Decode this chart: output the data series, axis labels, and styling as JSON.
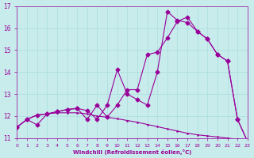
{
  "background_color": "#c8ecec",
  "grid_color": "#aadddd",
  "line_color": "#990099",
  "xlabel": "Windchill (Refroidissement éolien,°C)",
  "xlabel_color": "#990099",
  "tick_color": "#990099",
  "xlim": [
    0,
    23
  ],
  "ylim": [
    11,
    17
  ],
  "yticks": [
    11,
    12,
    13,
    14,
    15,
    16,
    17
  ],
  "xticks": [
    0,
    1,
    2,
    3,
    4,
    5,
    6,
    7,
    8,
    9,
    10,
    11,
    12,
    13,
    14,
    15,
    16,
    17,
    18,
    19,
    20,
    21,
    22,
    23
  ],
  "line1_x": [
    0,
    1,
    2,
    3,
    4,
    5,
    6,
    7,
    8,
    9,
    10,
    11,
    12,
    13,
    14,
    15,
    16,
    17,
    18,
    19,
    20,
    21,
    22,
    23
  ],
  "line1_y": [
    11.5,
    11.85,
    12.05,
    12.1,
    12.15,
    12.15,
    12.15,
    12.1,
    12.0,
    11.95,
    11.88,
    11.8,
    11.72,
    11.62,
    11.52,
    11.42,
    11.32,
    11.22,
    11.15,
    11.1,
    11.05,
    11.0,
    10.95,
    10.85
  ],
  "line2_x": [
    0,
    1,
    2,
    3,
    4,
    5,
    6,
    7,
    8,
    9,
    10,
    11,
    12,
    13,
    14,
    15,
    16,
    17,
    18,
    19,
    20,
    21,
    22,
    23
  ],
  "line2_y": [
    11.5,
    11.85,
    11.6,
    12.1,
    12.2,
    12.3,
    12.35,
    12.25,
    11.85,
    12.5,
    14.1,
    13.0,
    12.75,
    12.5,
    14.0,
    16.75,
    16.35,
    16.25,
    15.85,
    15.5,
    14.8,
    14.5,
    11.85,
    10.85
  ],
  "line3_x": [
    0,
    1,
    2,
    3,
    4,
    5,
    6,
    7,
    8,
    9,
    10,
    11,
    12,
    13,
    14,
    15,
    16,
    17,
    18,
    19,
    20,
    21,
    22,
    23
  ],
  "line3_y": [
    11.5,
    11.85,
    12.05,
    12.1,
    12.2,
    12.3,
    12.35,
    11.85,
    12.5,
    11.95,
    12.5,
    13.2,
    13.2,
    14.8,
    14.9,
    15.55,
    16.3,
    16.5,
    15.85,
    15.5,
    14.8,
    14.5,
    11.85,
    10.85
  ]
}
